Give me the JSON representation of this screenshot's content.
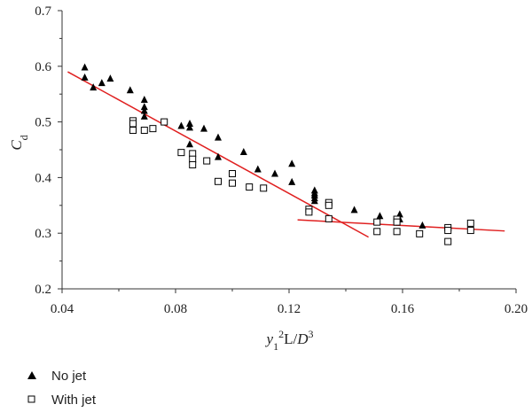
{
  "chart_data": {
    "type": "scatter",
    "title": "",
    "xlabel_parts": {
      "y": "y",
      "sub1": "1",
      "sup2": "2",
      "L": "L/",
      "D": "D",
      "sup3": "3"
    },
    "ylabel_parts": {
      "C": "C",
      "sub": "d"
    },
    "xlim": [
      0.04,
      0.2
    ],
    "ylim": [
      0.2,
      0.7
    ],
    "xticks": [
      "0.04",
      "0.08",
      "0.12",
      "0.16",
      "0.20"
    ],
    "yticks": [
      "0.2",
      "0.3",
      "0.4",
      "0.5",
      "0.6",
      "0.7"
    ],
    "legend_placement": "bottom-left",
    "grid": false,
    "series": [
      {
        "name": "No jet",
        "marker": "filled-triangle",
        "color": "#000000",
        "points": [
          [
            0.048,
            0.598
          ],
          [
            0.048,
            0.58
          ],
          [
            0.051,
            0.562
          ],
          [
            0.054,
            0.57
          ],
          [
            0.057,
            0.578
          ],
          [
            0.064,
            0.557
          ],
          [
            0.069,
            0.54
          ],
          [
            0.069,
            0.527
          ],
          [
            0.069,
            0.52
          ],
          [
            0.069,
            0.51
          ],
          [
            0.082,
            0.493
          ],
          [
            0.085,
            0.497
          ],
          [
            0.085,
            0.49
          ],
          [
            0.085,
            0.46
          ],
          [
            0.09,
            0.488
          ],
          [
            0.095,
            0.472
          ],
          [
            0.095,
            0.437
          ],
          [
            0.104,
            0.446
          ],
          [
            0.109,
            0.415
          ],
          [
            0.115,
            0.407
          ],
          [
            0.121,
            0.425
          ],
          [
            0.121,
            0.392
          ],
          [
            0.129,
            0.377
          ],
          [
            0.129,
            0.372
          ],
          [
            0.129,
            0.368
          ],
          [
            0.129,
            0.363
          ],
          [
            0.129,
            0.358
          ],
          [
            0.143,
            0.342
          ],
          [
            0.152,
            0.331
          ],
          [
            0.159,
            0.334
          ],
          [
            0.159,
            0.325
          ],
          [
            0.167,
            0.314
          ]
        ]
      },
      {
        "name": "With jet",
        "marker": "open-square",
        "color": "#000000",
        "points": [
          [
            0.065,
            0.502
          ],
          [
            0.065,
            0.497
          ],
          [
            0.065,
            0.485
          ],
          [
            0.069,
            0.485
          ],
          [
            0.072,
            0.488
          ],
          [
            0.076,
            0.5
          ],
          [
            0.082,
            0.445
          ],
          [
            0.086,
            0.443
          ],
          [
            0.086,
            0.433
          ],
          [
            0.086,
            0.423
          ],
          [
            0.091,
            0.43
          ],
          [
            0.095,
            0.393
          ],
          [
            0.1,
            0.407
          ],
          [
            0.1,
            0.39
          ],
          [
            0.106,
            0.383
          ],
          [
            0.111,
            0.381
          ],
          [
            0.127,
            0.343
          ],
          [
            0.127,
            0.338
          ],
          [
            0.134,
            0.355
          ],
          [
            0.134,
            0.35
          ],
          [
            0.134,
            0.326
          ],
          [
            0.151,
            0.32
          ],
          [
            0.151,
            0.303
          ],
          [
            0.158,
            0.325
          ],
          [
            0.158,
            0.32
          ],
          [
            0.158,
            0.303
          ],
          [
            0.166,
            0.299
          ],
          [
            0.176,
            0.31
          ],
          [
            0.176,
            0.305
          ],
          [
            0.176,
            0.285
          ],
          [
            0.184,
            0.318
          ],
          [
            0.184,
            0.305
          ]
        ]
      }
    ],
    "fit_lines": [
      {
        "color": "#e02020",
        "from": [
          0.042,
          0.59
        ],
        "to": [
          0.148,
          0.293
        ]
      },
      {
        "color": "#e02020",
        "from": [
          0.123,
          0.324
        ],
        "to": [
          0.196,
          0.304
        ]
      }
    ]
  }
}
